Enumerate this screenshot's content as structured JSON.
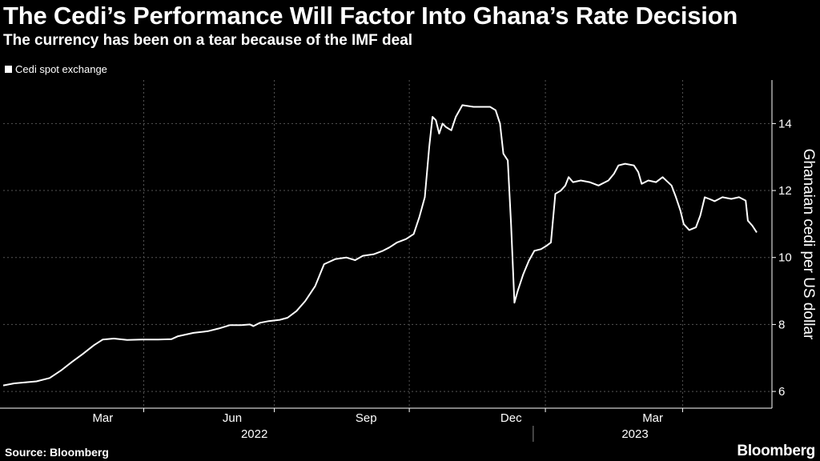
{
  "title": "The Cedi’s Performance Will Factor Into Ghana’s Rate Decision",
  "subtitle": "The currency has been on a tear because of the IMF deal",
  "source": "Source: Bloomberg",
  "brand": "Bloomberg",
  "colors": {
    "background": "#000000",
    "line": "#ffffff",
    "grid": "#555555"
  },
  "chart_data": {
    "type": "line",
    "series": [
      {
        "name": "Cedi spot exchange",
        "points": [
          [
            0,
            6.18
          ],
          [
            10,
            6.24
          ],
          [
            20,
            6.27
          ],
          [
            30,
            6.3
          ],
          [
            42,
            6.4
          ],
          [
            52,
            6.62
          ],
          [
            62,
            6.88
          ],
          [
            72,
            7.12
          ],
          [
            82,
            7.38
          ],
          [
            90,
            7.55
          ],
          [
            100,
            7.58
          ],
          [
            112,
            7.54
          ],
          [
            125,
            7.55
          ],
          [
            140,
            7.55
          ],
          [
            152,
            7.56
          ],
          [
            158,
            7.65
          ],
          [
            172,
            7.75
          ],
          [
            185,
            7.8
          ],
          [
            195,
            7.88
          ],
          [
            205,
            7.98
          ],
          [
            215,
            7.98
          ],
          [
            223,
            8.0
          ],
          [
            226,
            7.95
          ],
          [
            232,
            8.05
          ],
          [
            240,
            8.1
          ],
          [
            250,
            8.14
          ],
          [
            257,
            8.2
          ],
          [
            265,
            8.4
          ],
          [
            273,
            8.7
          ],
          [
            282,
            9.15
          ],
          [
            290,
            9.8
          ],
          [
            300,
            9.95
          ],
          [
            310,
            10.0
          ],
          [
            318,
            9.92
          ],
          [
            325,
            10.05
          ],
          [
            335,
            10.1
          ],
          [
            343,
            10.2
          ],
          [
            349,
            10.3
          ],
          [
            356,
            10.45
          ],
          [
            364,
            10.55
          ],
          [
            371,
            10.7
          ],
          [
            376,
            11.2
          ],
          [
            381,
            11.8
          ],
          [
            385,
            13.3
          ],
          [
            388,
            14.2
          ],
          [
            391,
            14.1
          ],
          [
            394,
            13.7
          ],
          [
            397,
            14.0
          ],
          [
            400,
            13.9
          ],
          [
            405,
            13.8
          ],
          [
            409,
            14.2
          ],
          [
            415,
            14.55
          ],
          [
            425,
            14.5
          ],
          [
            440,
            14.5
          ],
          [
            445,
            14.4
          ],
          [
            449,
            14.0
          ],
          [
            452,
            13.1
          ],
          [
            456,
            12.9
          ],
          [
            459,
            11.0
          ],
          [
            462,
            8.65
          ],
          [
            465,
            9.0
          ],
          [
            470,
            9.5
          ],
          [
            475,
            9.9
          ],
          [
            480,
            10.2
          ],
          [
            486,
            10.25
          ],
          [
            491,
            10.35
          ],
          [
            495,
            10.45
          ],
          [
            499,
            11.9
          ],
          [
            504,
            12.0
          ],
          [
            508,
            12.15
          ],
          [
            511,
            12.4
          ],
          [
            515,
            12.25
          ],
          [
            522,
            12.3
          ],
          [
            530,
            12.25
          ],
          [
            538,
            12.15
          ],
          [
            547,
            12.3
          ],
          [
            552,
            12.5
          ],
          [
            556,
            12.75
          ],
          [
            562,
            12.8
          ],
          [
            570,
            12.75
          ],
          [
            574,
            12.55
          ],
          [
            577,
            12.2
          ],
          [
            583,
            12.3
          ],
          [
            590,
            12.25
          ],
          [
            596,
            12.4
          ],
          [
            604,
            12.15
          ],
          [
            608,
            11.8
          ],
          [
            612,
            11.4
          ],
          [
            615,
            11.0
          ],
          [
            620,
            10.82
          ],
          [
            626,
            10.9
          ],
          [
            630,
            11.25
          ],
          [
            634,
            11.8
          ],
          [
            638,
            11.75
          ],
          [
            643,
            11.68
          ],
          [
            650,
            11.8
          ],
          [
            658,
            11.75
          ],
          [
            665,
            11.8
          ],
          [
            671,
            11.7
          ],
          [
            673,
            11.1
          ],
          [
            677,
            10.95
          ],
          [
            681,
            10.75
          ]
        ]
      }
    ],
    "x_domain": [
      0,
      681
    ],
    "y_range": [
      5.5,
      15.3
    ],
    "yticks": [
      6,
      8,
      10,
      12,
      14
    ],
    "ylabel": "Ghanaian cedi per US dollar",
    "xticks": [
      {
        "label": "Mar",
        "x": 90
      },
      {
        "label": "Jun",
        "x": 207
      },
      {
        "label": "Sep",
        "x": 328
      },
      {
        "label": "Dec",
        "x": 459
      },
      {
        "label": "Mar",
        "x": 587
      }
    ],
    "gridlines_x": [
      127,
      245,
      367,
      490,
      614
    ],
    "year_labels": [
      {
        "label": "2022",
        "x": 227
      },
      {
        "label": "2023",
        "x": 571
      }
    ],
    "year_divider_x": 479,
    "legend": "Cedi spot exchange"
  }
}
